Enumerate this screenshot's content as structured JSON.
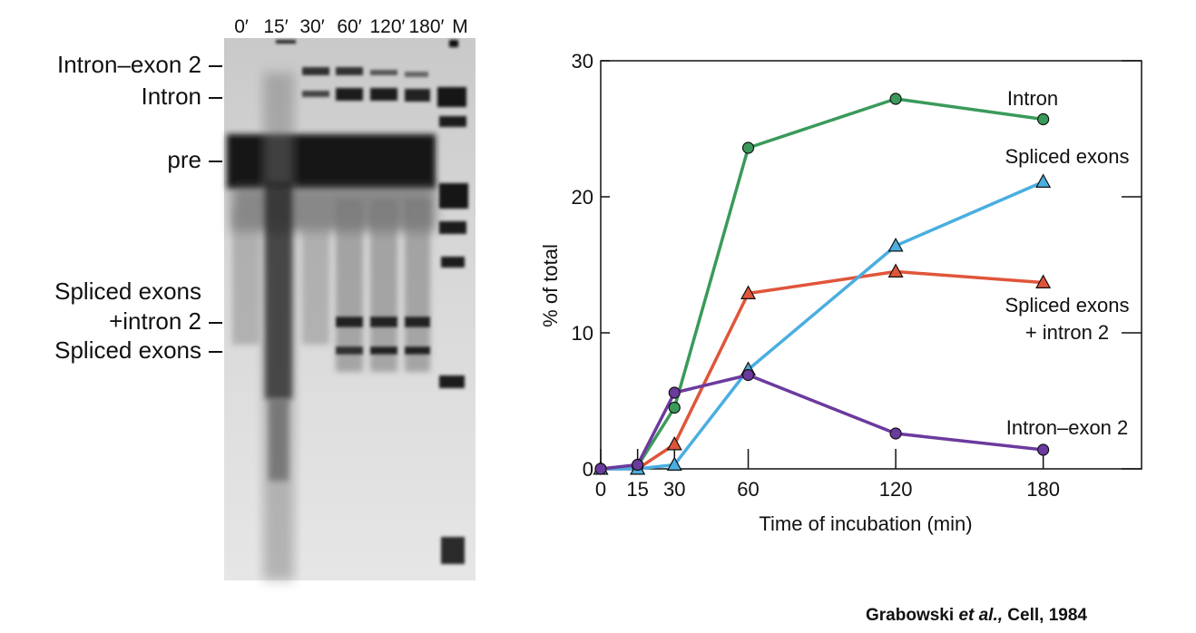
{
  "gel": {
    "lane_labels": [
      "0′",
      "15′",
      "30′",
      "60′",
      "120′",
      "180′",
      "M"
    ],
    "band_labels": [
      {
        "id": "intron-exon2",
        "lines": [
          "Intron–exon 2"
        ]
      },
      {
        "id": "intron",
        "lines": [
          "Intron"
        ]
      },
      {
        "id": "pre",
        "lines": [
          "pre"
        ]
      },
      {
        "id": "spliced-exons-intron2",
        "lines": [
          "Spliced exons",
          "+intron 2"
        ]
      },
      {
        "id": "spliced-exons",
        "lines": [
          "Spliced exons"
        ]
      }
    ]
  },
  "chart_data": {
    "type": "line",
    "title": "",
    "xlabel": "Time of incubation (min)",
    "ylabel": "% of total",
    "xlim": [
      0,
      220
    ],
    "ylim": [
      0,
      30
    ],
    "xticks": [
      0,
      15,
      30,
      60,
      120,
      180
    ],
    "yticks": [
      0,
      10,
      20,
      30
    ],
    "grid": false,
    "series": [
      {
        "name": "Intron",
        "color": "#3a9a5b",
        "marker": "circle",
        "x": [
          0,
          15,
          30,
          60,
          120,
          180
        ],
        "y": [
          0,
          0.2,
          4.5,
          23.6,
          27.2,
          25.7
        ]
      },
      {
        "name": "Spliced exons",
        "color": "#4aaee0",
        "marker": "triangle",
        "x": [
          0,
          15,
          30,
          60,
          120,
          180
        ],
        "y": [
          0,
          0,
          0.3,
          7.3,
          16.4,
          21.1
        ]
      },
      {
        "name": "Spliced exons + intron 2",
        "color": "#e0553a",
        "marker": "triangle",
        "label_lines": [
          "Spliced exons",
          "+ intron 2"
        ],
        "x": [
          0,
          15,
          30,
          60,
          120,
          180
        ],
        "y": [
          0,
          0,
          1.8,
          12.9,
          14.5,
          13.7
        ]
      },
      {
        "name": "Intron–exon 2",
        "color": "#6b3a9e",
        "marker": "circle",
        "x": [
          0,
          15,
          30,
          60,
          120,
          180
        ],
        "y": [
          0,
          0.3,
          5.6,
          6.9,
          2.6,
          1.4
        ]
      }
    ]
  },
  "citation": {
    "authors": "Grabowski",
    "etal": "et al.,",
    "journal": "Cell, 1984"
  }
}
